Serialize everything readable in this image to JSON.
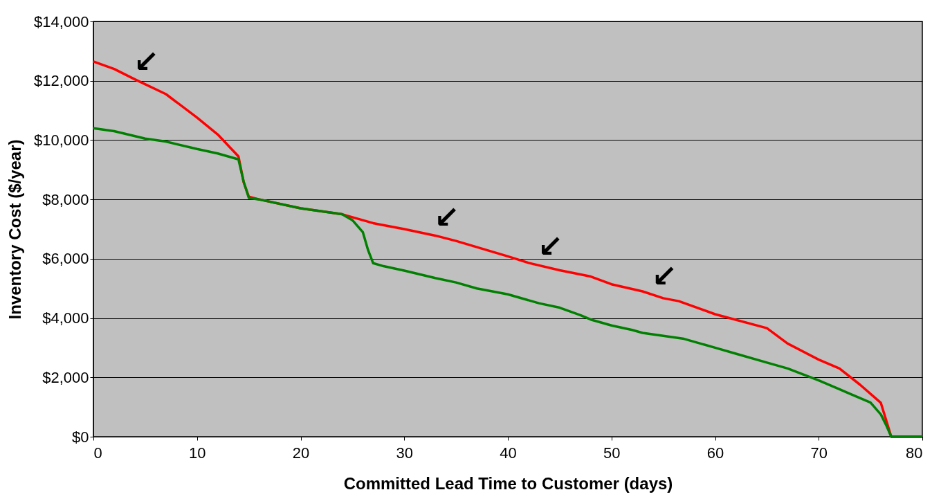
{
  "chart_data": {
    "type": "line",
    "xlabel": "Committed Lead Time to Customer (days)",
    "ylabel": "Inventory Cost ($/year)",
    "xlim": [
      0,
      80
    ],
    "xticks": [
      0,
      10,
      20,
      30,
      40,
      50,
      60,
      70,
      80
    ],
    "ylim": [
      0,
      14000
    ],
    "yticks": [
      {
        "value": 0,
        "label": "$0"
      },
      {
        "value": 2000,
        "label": "$2,000"
      },
      {
        "value": 4000,
        "label": "$4,000"
      },
      {
        "value": 6000,
        "label": "$6,000"
      },
      {
        "value": 8000,
        "label": "$8,000"
      },
      {
        "value": 10000,
        "label": "$10,000"
      },
      {
        "value": 12000,
        "label": "$12,000"
      },
      {
        "value": 14000,
        "label": "$14,000"
      }
    ],
    "grid": "y",
    "legend": false,
    "marker": "none",
    "line_style": "solid",
    "series": [
      {
        "color": "#ff0000",
        "x": [
          0,
          2,
          4,
          7,
          10,
          12,
          14,
          14.5,
          15,
          16,
          20,
          24,
          25,
          27,
          30,
          33,
          35,
          40,
          42,
          45,
          48,
          50,
          53,
          55,
          56.5,
          60,
          65,
          67,
          70,
          72,
          74,
          76,
          77,
          80
        ],
        "values": [
          12650,
          12400,
          12050,
          11550,
          10760,
          10190,
          9450,
          8580,
          8090,
          8000,
          7700,
          7500,
          7400,
          7200,
          7000,
          6780,
          6600,
          6080,
          5860,
          5610,
          5400,
          5140,
          4900,
          4670,
          4570,
          4130,
          3660,
          3140,
          2600,
          2300,
          1750,
          1140,
          0,
          0
        ]
      },
      {
        "color": "#008000",
        "x": [
          0,
          2,
          5,
          7,
          10,
          12,
          14,
          14.5,
          15,
          16,
          20,
          24,
          25,
          26,
          26.5,
          27,
          28,
          30,
          33,
          35,
          37,
          40,
          43,
          45,
          47,
          48,
          49,
          50,
          52,
          53,
          55,
          57,
          60,
          62,
          65,
          67,
          70,
          72,
          73,
          75,
          76,
          76.5,
          77,
          80
        ],
        "values": [
          10400,
          10300,
          10050,
          9950,
          9700,
          9550,
          9350,
          8600,
          8050,
          8000,
          7700,
          7500,
          7300,
          6900,
          6300,
          5850,
          5750,
          5600,
          5350,
          5200,
          5000,
          4800,
          4500,
          4350,
          4100,
          3950,
          3850,
          3750,
          3600,
          3500,
          3400,
          3300,
          3000,
          2800,
          2500,
          2300,
          1900,
          1600,
          1450,
          1150,
          750,
          400,
          0,
          0
        ]
      }
    ],
    "annotations": [
      {
        "text": "↙",
        "x": 4,
        "y": 12050
      },
      {
        "text": "↙",
        "x": 33,
        "y": 6780
      },
      {
        "text": "↙",
        "x": 43,
        "y": 5800
      },
      {
        "text": "↙",
        "x": 54,
        "y": 4800
      }
    ]
  }
}
